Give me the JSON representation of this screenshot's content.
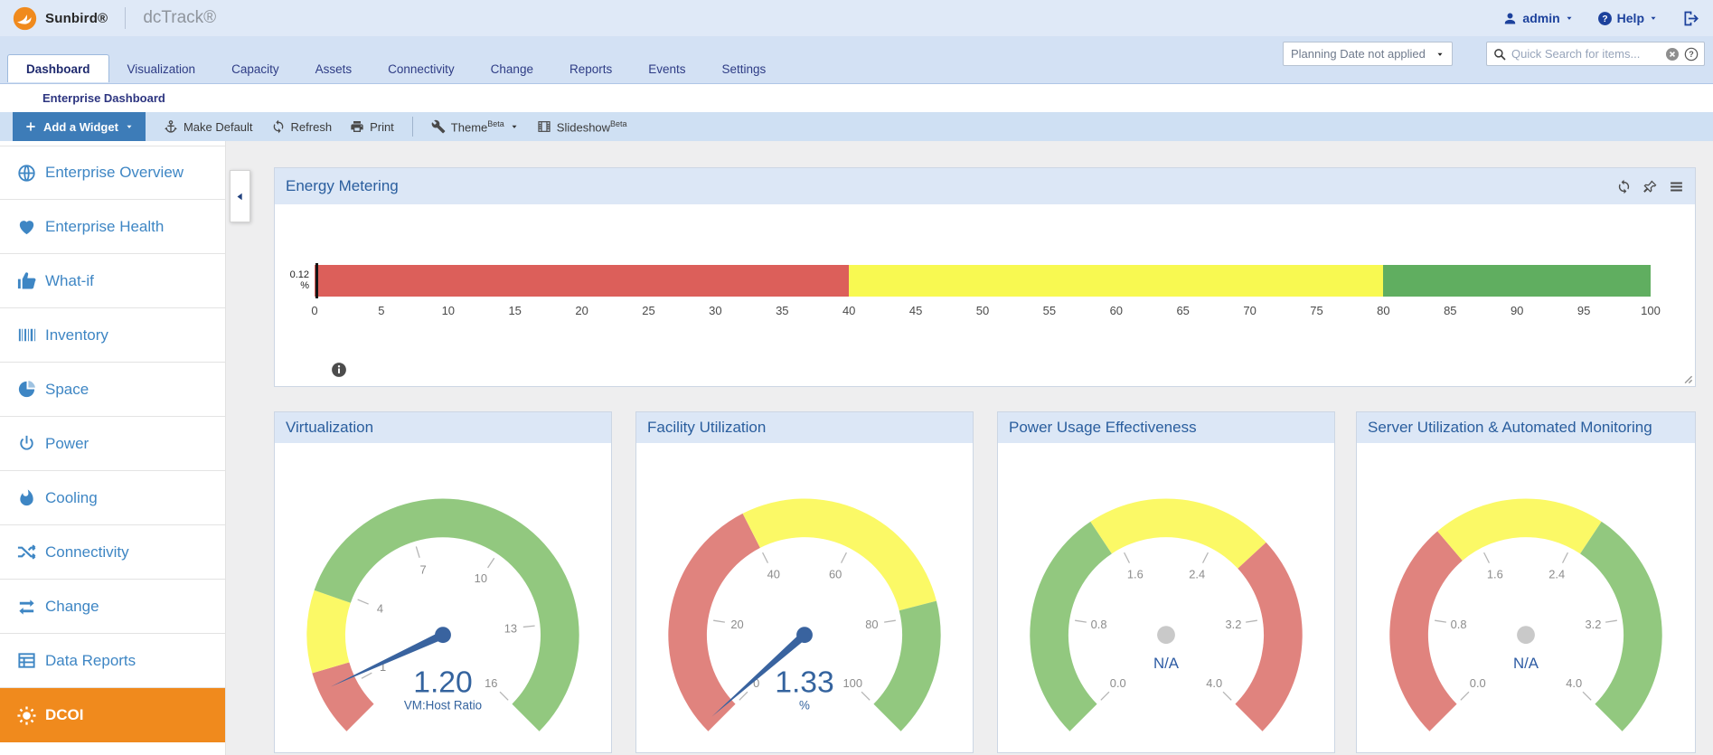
{
  "app": {
    "brand": "Sunbird®",
    "product": "dcTrack®"
  },
  "topbar": {
    "user_label": "admin",
    "help_label": "Help"
  },
  "tabbar": {
    "tabs": [
      "Dashboard",
      "Visualization",
      "Capacity",
      "Assets",
      "Connectivity",
      "Change",
      "Reports",
      "Events",
      "Settings"
    ],
    "active_tab": "Dashboard",
    "planning_date": "Planning Date not applied",
    "search_placeholder": "Quick Search for items..."
  },
  "breadcrumb": {
    "title": "Enterprise Dashboard"
  },
  "toolbar": {
    "add_widget_label": "Add a Widget",
    "make_default_label": "Make Default",
    "refresh_label": "Refresh",
    "print_label": "Print",
    "theme_label": "Theme",
    "slideshow_label": "Slideshow",
    "beta_suffix": "Beta"
  },
  "sidebar": {
    "items": [
      {
        "label": "Enterprise Overview",
        "icon": "globe-icon",
        "active": false
      },
      {
        "label": "Enterprise Health",
        "icon": "heart-icon",
        "active": false
      },
      {
        "label": "What-if",
        "icon": "thumbs-up-icon",
        "active": false
      },
      {
        "label": "Inventory",
        "icon": "barcode-icon",
        "active": false
      },
      {
        "label": "Space",
        "icon": "sphere-icon",
        "active": false
      },
      {
        "label": "Power",
        "icon": "power-icon",
        "active": false
      },
      {
        "label": "Cooling",
        "icon": "flame-icon",
        "active": false
      },
      {
        "label": "Connectivity",
        "icon": "shuffle-icon",
        "active": false
      },
      {
        "label": "Change",
        "icon": "exchange-icon",
        "active": false
      },
      {
        "label": "Data Reports",
        "icon": "report-table-icon",
        "active": false
      },
      {
        "label": "DCOI",
        "icon": "sun-icon",
        "active": true
      }
    ]
  },
  "colors": {
    "brand_orange": "#F08A1D",
    "sidebar_link_blue": "#3E86C4",
    "active_item_orange": "#F08A1D",
    "widget_header_bg": "#DCE7F6",
    "toolbar_button_blue": "#3D7CB8",
    "navy_text": "#2D3580",
    "needle_blue": "#39639F",
    "gauge_red": "#E0837E",
    "gauge_yellow": "#FBF966",
    "gauge_green": "#92C87F"
  },
  "chart_data": [
    {
      "type": "linear-gauge",
      "title": "Energy Metering",
      "value": 0.12,
      "value_label": "0.12",
      "unit": "%",
      "min": 0,
      "max": 100,
      "tick_interval": 5,
      "bands": [
        {
          "from": 0,
          "to": 40,
          "color": "#dc5f5a"
        },
        {
          "from": 40,
          "to": 80,
          "color": "#f8f951"
        },
        {
          "from": 80,
          "to": 100,
          "color": "#60ae60"
        }
      ]
    },
    {
      "type": "radial-gauge",
      "title": "Virtualization",
      "value": 1.2,
      "value_label": "1.20",
      "unit": "VM:Host Ratio",
      "min": 0,
      "max": 16,
      "ticks": [
        {
          "value": 1,
          "label": "1"
        },
        {
          "value": 4,
          "label": "4"
        },
        {
          "value": 7,
          "label": "7"
        },
        {
          "value": 10,
          "label": "10"
        },
        {
          "value": 13,
          "label": "13"
        },
        {
          "value": 16,
          "label": "16"
        }
      ],
      "bands": [
        {
          "from": 0,
          "to": 1.7,
          "color": "#e0837e"
        },
        {
          "from": 1.7,
          "to": 3.8,
          "color": "#fbf966"
        },
        {
          "from": 3.8,
          "to": 16,
          "color": "#92c87f"
        }
      ]
    },
    {
      "type": "radial-gauge",
      "title": "Facility Utilization",
      "value": 1.33,
      "value_label": "1.33",
      "unit": "%",
      "min": 0,
      "max": 100,
      "ticks": [
        {
          "value": 0,
          "label": "0"
        },
        {
          "value": 20,
          "label": "20"
        },
        {
          "value": 40,
          "label": "40"
        },
        {
          "value": 60,
          "label": "60"
        },
        {
          "value": 80,
          "label": "80"
        },
        {
          "value": 100,
          "label": "100"
        }
      ],
      "bands": [
        {
          "from": 0,
          "to": 40,
          "color": "#e0837e"
        },
        {
          "from": 40,
          "to": 78,
          "color": "#fbf966"
        },
        {
          "from": 78,
          "to": 100,
          "color": "#92c87f"
        }
      ]
    },
    {
      "type": "radial-gauge",
      "title": "Power Usage Effectiveness",
      "value": null,
      "value_label": "N/A",
      "unit": null,
      "min": 0,
      "max": 4,
      "ticks": [
        {
          "value": 0,
          "label": "0.0"
        },
        {
          "value": 0.8,
          "label": "0.8"
        },
        {
          "value": 1.6,
          "label": "1.6"
        },
        {
          "value": 2.4,
          "label": "2.4"
        },
        {
          "value": 3.2,
          "label": "3.2"
        },
        {
          "value": 4,
          "label": "4.0"
        }
      ],
      "bands": [
        {
          "from": 0,
          "to": 1.5,
          "color": "#92c87f"
        },
        {
          "from": 1.5,
          "to": 2.7,
          "color": "#fbf966"
        },
        {
          "from": 2.7,
          "to": 4,
          "color": "#e0837e"
        }
      ]
    },
    {
      "type": "radial-gauge",
      "title": "Server Utilization & Automated Monitoring",
      "value": null,
      "value_label": "N/A",
      "unit": null,
      "min": 0,
      "max": 4,
      "ticks": [
        {
          "value": 0,
          "label": "0.0"
        },
        {
          "value": 0.8,
          "label": "0.8"
        },
        {
          "value": 1.6,
          "label": "1.6"
        },
        {
          "value": 2.4,
          "label": "2.4"
        },
        {
          "value": 3.2,
          "label": "3.2"
        },
        {
          "value": 4,
          "label": "4.0"
        }
      ],
      "bands": [
        {
          "from": 0,
          "to": 1.4,
          "color": "#e0837e"
        },
        {
          "from": 1.4,
          "to": 2.5,
          "color": "#fbf966"
        },
        {
          "from": 2.5,
          "to": 4,
          "color": "#92c87f"
        }
      ]
    }
  ]
}
